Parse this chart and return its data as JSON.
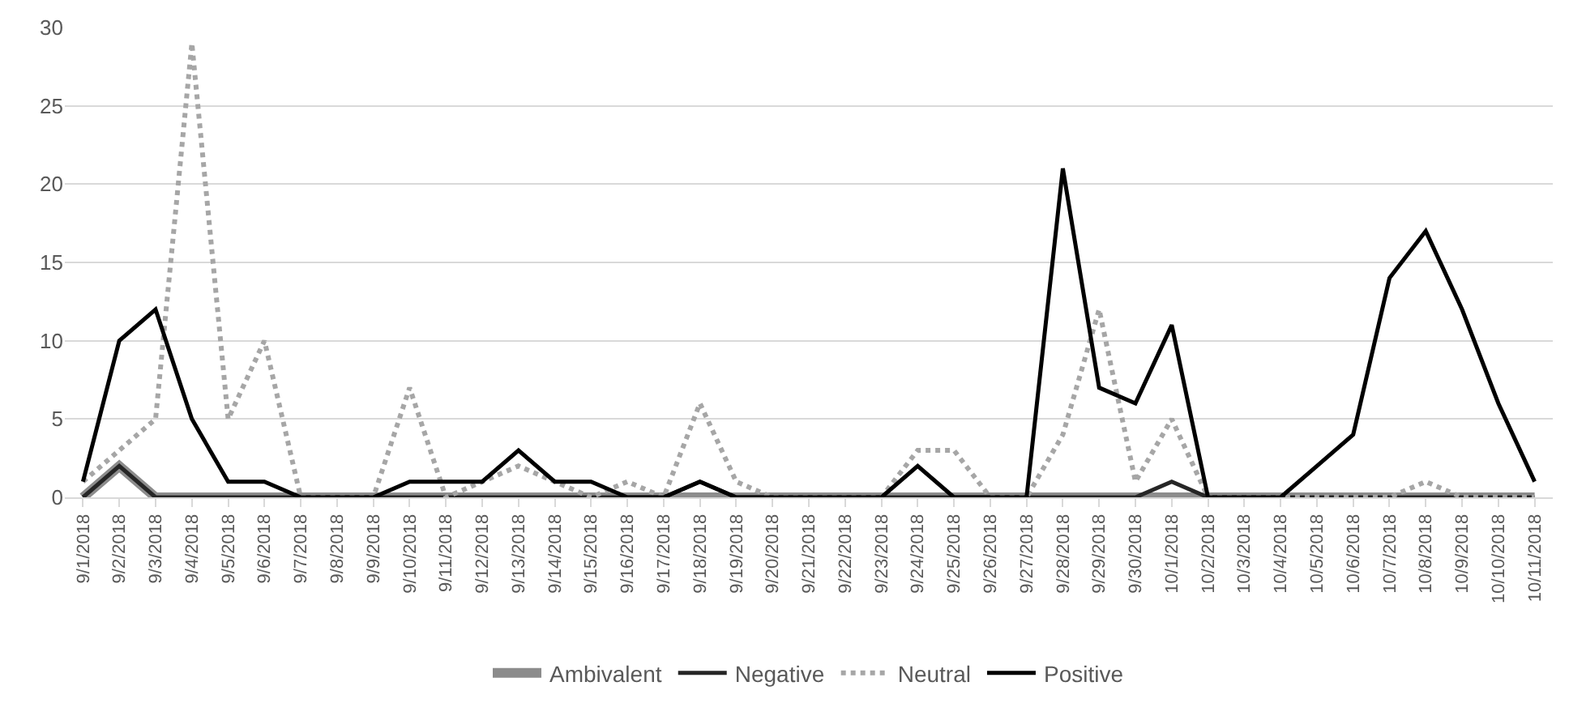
{
  "chart_data": {
    "type": "line",
    "categories": [
      "9/1/2018",
      "9/2/2018",
      "9/3/2018",
      "9/4/2018",
      "9/5/2018",
      "9/6/2018",
      "9/7/2018",
      "9/8/2018",
      "9/9/2018",
      "9/10/2018",
      "9/11/2018",
      "9/12/2018",
      "9/13/2018",
      "9/14/2018",
      "9/15/2018",
      "9/16/2018",
      "9/17/2018",
      "9/18/2018",
      "9/19/2018",
      "9/20/2018",
      "9/21/2018",
      "9/22/2018",
      "9/23/2018",
      "9/24/2018",
      "9/25/2018",
      "9/26/2018",
      "9/27/2018",
      "9/28/2018",
      "9/29/2018",
      "9/30/2018",
      "10/1/2018",
      "10/2/2018",
      "10/3/2018",
      "10/4/2018",
      "10/5/2018",
      "10/6/2018",
      "10/7/2018",
      "10/8/2018",
      "10/9/2018",
      "10/10/2018",
      "10/11/2018"
    ],
    "series": [
      {
        "name": "Ambivalent",
        "color": "#8c8c8c",
        "line_style": "solid",
        "values": [
          0,
          2,
          0,
          0,
          0,
          0,
          0,
          0,
          0,
          0,
          0,
          0,
          0,
          0,
          0,
          0,
          0,
          0,
          0,
          0,
          0,
          0,
          0,
          0,
          0,
          0,
          0,
          0,
          0,
          0,
          0,
          0,
          0,
          0,
          0,
          0,
          0,
          0,
          0,
          0,
          0
        ]
      },
      {
        "name": "Negative",
        "color": "#262626",
        "line_style": "solid",
        "values": [
          0,
          2,
          0,
          0,
          0,
          0,
          0,
          0,
          0,
          0,
          0,
          0,
          0,
          0,
          0,
          0,
          0,
          1,
          0,
          0,
          0,
          0,
          0,
          0,
          0,
          0,
          0,
          0,
          0,
          0,
          1,
          0,
          0,
          0,
          0,
          0,
          0,
          0,
          0,
          0,
          0
        ]
      },
      {
        "name": "Neutral",
        "color": "#a6a6a6",
        "line_style": "dotted",
        "values": [
          1,
          3,
          5,
          29,
          5,
          10,
          0,
          0,
          0,
          7,
          0,
          1,
          2,
          1,
          0,
          1,
          0,
          6,
          1,
          0,
          0,
          0,
          0,
          3,
          3,
          0,
          0,
          4,
          12,
          1,
          5,
          0,
          0,
          0,
          0,
          0,
          0,
          1,
          0,
          0,
          0
        ]
      },
      {
        "name": "Positive",
        "color": "#000000",
        "line_style": "solid",
        "values": [
          1,
          10,
          12,
          5,
          1,
          1,
          0,
          0,
          0,
          1,
          1,
          1,
          3,
          1,
          1,
          0,
          0,
          1,
          0,
          0,
          0,
          0,
          0,
          2,
          0,
          0,
          0,
          21,
          7,
          6,
          11,
          0,
          0,
          0,
          2,
          4,
          14,
          17,
          12,
          6,
          1
        ]
      }
    ],
    "ylim": [
      0,
      30
    ],
    "yticks": [
      0,
      5,
      10,
      15,
      20,
      25,
      30
    ],
    "grid": "y",
    "legend": "bottom",
    "marker": "none"
  }
}
